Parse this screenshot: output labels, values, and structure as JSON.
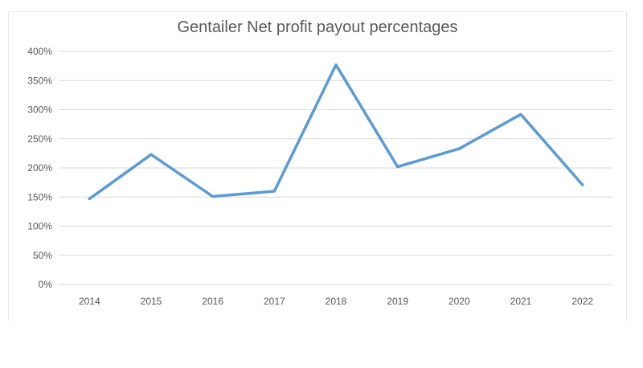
{
  "chart_data": {
    "type": "line",
    "title": "Gentailer Net profit payout percentages",
    "xlabel": "",
    "ylabel": "",
    "categories": [
      "2014",
      "2015",
      "2016",
      "2017",
      "2018",
      "2019",
      "2020",
      "2021",
      "2022"
    ],
    "series": [
      {
        "values": [
          147,
          223,
          151,
          160,
          377,
          202,
          233,
          292,
          171
        ]
      }
    ],
    "ylim": [
      0,
      400
    ],
    "yticks": [
      0,
      50,
      100,
      150,
      200,
      250,
      300,
      350,
      400
    ],
    "ytick_labels": [
      "0%",
      "50%",
      "100%",
      "150%",
      "200%",
      "250%",
      "300%",
      "350%",
      "400%"
    ],
    "grid": true,
    "legend": "none",
    "line_color": "#5b9bd5"
  }
}
